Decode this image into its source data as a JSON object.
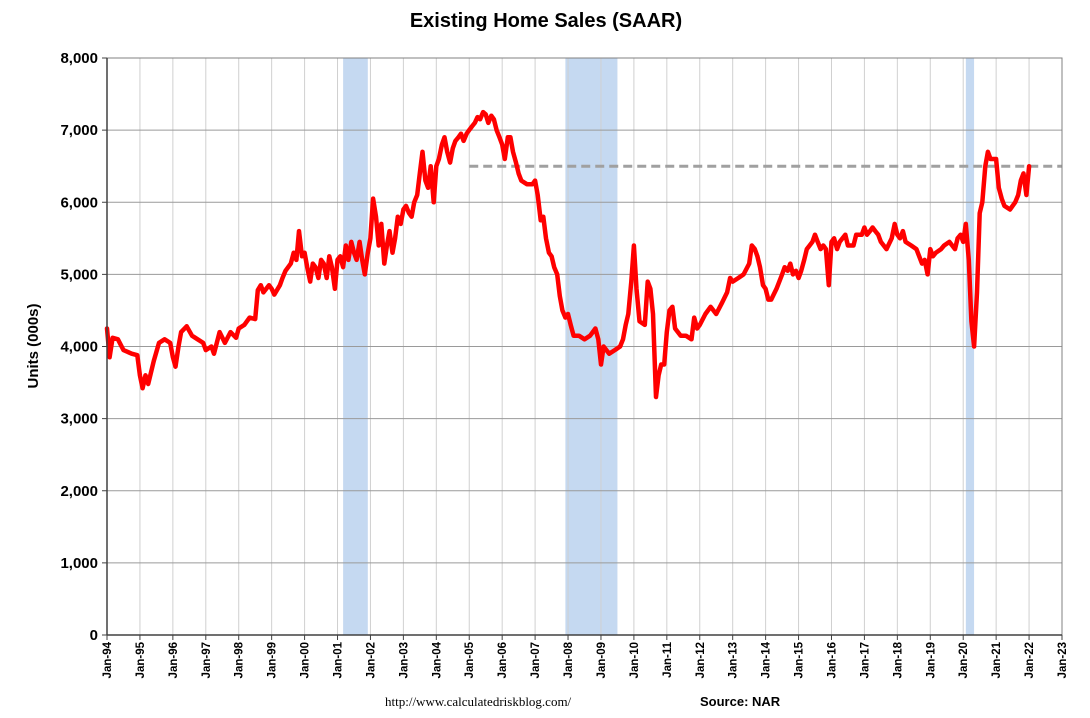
{
  "chart_data": {
    "type": "line",
    "title": "Existing Home Sales (SAAR)",
    "ylabel": "Units (000s)",
    "xlabel": "",
    "ylim": [
      0,
      8000
    ],
    "y_ticks": [
      0,
      1000,
      2000,
      3000,
      4000,
      5000,
      6000,
      7000,
      8000
    ],
    "y_tick_labels": [
      "0",
      "1,000",
      "2,000",
      "3,000",
      "4,000",
      "5,000",
      "6,000",
      "7,000",
      "8,000"
    ],
    "x_range": [
      1994,
      2023
    ],
    "x_ticks": [
      1994,
      1995,
      1996,
      1997,
      1998,
      1999,
      2000,
      2001,
      2002,
      2003,
      2004,
      2005,
      2006,
      2007,
      2008,
      2009,
      2010,
      2011,
      2012,
      2013,
      2014,
      2015,
      2016,
      2017,
      2018,
      2019,
      2020,
      2021,
      2022,
      2023
    ],
    "x_tick_labels": [
      "Jan-94",
      "Jan-95",
      "Jan-96",
      "Jan-97",
      "Jan-98",
      "Jan-99",
      "Jan-00",
      "Jan-01",
      "Jan-02",
      "Jan-03",
      "Jan-04",
      "Jan-05",
      "Jan-06",
      "Jan-07",
      "Jan-08",
      "Jan-09",
      "Jan-10",
      "Jan-11",
      "Jan-12",
      "Jan-13",
      "Jan-14",
      "Jan-15",
      "Jan-16",
      "Jan-17",
      "Jan-18",
      "Jan-19",
      "Jan-20",
      "Jan-21",
      "Jan-22",
      "Jan-23"
    ],
    "grid": true,
    "recessions": [
      [
        2001.17,
        2001.92
      ],
      [
        2007.92,
        2009.5
      ],
      [
        2020.08,
        2020.33
      ]
    ],
    "reference_line": {
      "y": 6500,
      "x_start": 2005.0,
      "x_end": 2023.0,
      "style": "dashed",
      "color": "#a0a0a0"
    },
    "series": [
      {
        "color": "#ff0000",
        "points": [
          [
            1994.0,
            4250
          ],
          [
            1994.08,
            3850
          ],
          [
            1994.17,
            4120
          ],
          [
            1994.33,
            4100
          ],
          [
            1994.5,
            3950
          ],
          [
            1994.75,
            3900
          ],
          [
            1994.92,
            3880
          ],
          [
            1995.0,
            3600
          ],
          [
            1995.08,
            3420
          ],
          [
            1995.17,
            3600
          ],
          [
            1995.25,
            3480
          ],
          [
            1995.42,
            3800
          ],
          [
            1995.58,
            4050
          ],
          [
            1995.75,
            4100
          ],
          [
            1995.92,
            4050
          ],
          [
            1996.0,
            3850
          ],
          [
            1996.08,
            3720
          ],
          [
            1996.17,
            4000
          ],
          [
            1996.25,
            4200
          ],
          [
            1996.42,
            4280
          ],
          [
            1996.58,
            4150
          ],
          [
            1996.75,
            4100
          ],
          [
            1996.92,
            4050
          ],
          [
            1997.0,
            3950
          ],
          [
            1997.17,
            4000
          ],
          [
            1997.25,
            3900
          ],
          [
            1997.42,
            4200
          ],
          [
            1997.58,
            4050
          ],
          [
            1997.75,
            4200
          ],
          [
            1997.92,
            4120
          ],
          [
            1998.0,
            4250
          ],
          [
            1998.17,
            4300
          ],
          [
            1998.33,
            4400
          ],
          [
            1998.5,
            4380
          ],
          [
            1998.58,
            4780
          ],
          [
            1998.67,
            4850
          ],
          [
            1998.75,
            4750
          ],
          [
            1998.92,
            4850
          ],
          [
            1999.0,
            4800
          ],
          [
            1999.08,
            4720
          ],
          [
            1999.25,
            4850
          ],
          [
            1999.33,
            4950
          ],
          [
            1999.42,
            5050
          ],
          [
            1999.58,
            5150
          ],
          [
            1999.67,
            5300
          ],
          [
            1999.75,
            5200
          ],
          [
            1999.83,
            5600
          ],
          [
            1999.92,
            5250
          ],
          [
            2000.0,
            5300
          ],
          [
            2000.08,
            5100
          ],
          [
            2000.17,
            4900
          ],
          [
            2000.25,
            5150
          ],
          [
            2000.33,
            5100
          ],
          [
            2000.42,
            4950
          ],
          [
            2000.5,
            5200
          ],
          [
            2000.58,
            5150
          ],
          [
            2000.67,
            4950
          ],
          [
            2000.75,
            5250
          ],
          [
            2000.83,
            5100
          ],
          [
            2000.92,
            4800
          ],
          [
            2001.0,
            5200
          ],
          [
            2001.08,
            5250
          ],
          [
            2001.17,
            5100
          ],
          [
            2001.25,
            5400
          ],
          [
            2001.33,
            5200
          ],
          [
            2001.42,
            5450
          ],
          [
            2001.5,
            5300
          ],
          [
            2001.58,
            5200
          ],
          [
            2001.67,
            5450
          ],
          [
            2001.75,
            5200
          ],
          [
            2001.83,
            5000
          ],
          [
            2001.92,
            5300
          ],
          [
            2002.0,
            5500
          ],
          [
            2002.08,
            6050
          ],
          [
            2002.17,
            5800
          ],
          [
            2002.25,
            5400
          ],
          [
            2002.33,
            5700
          ],
          [
            2002.42,
            5150
          ],
          [
            2002.5,
            5400
          ],
          [
            2002.58,
            5600
          ],
          [
            2002.67,
            5300
          ],
          [
            2002.75,
            5500
          ],
          [
            2002.83,
            5800
          ],
          [
            2002.92,
            5700
          ],
          [
            2003.0,
            5900
          ],
          [
            2003.08,
            5950
          ],
          [
            2003.17,
            5850
          ],
          [
            2003.25,
            5800
          ],
          [
            2003.33,
            6000
          ],
          [
            2003.42,
            6100
          ],
          [
            2003.5,
            6400
          ],
          [
            2003.58,
            6700
          ],
          [
            2003.67,
            6300
          ],
          [
            2003.75,
            6200
          ],
          [
            2003.83,
            6500
          ],
          [
            2003.92,
            6000
          ],
          [
            2004.0,
            6500
          ],
          [
            2004.08,
            6600
          ],
          [
            2004.17,
            6800
          ],
          [
            2004.25,
            6900
          ],
          [
            2004.33,
            6700
          ],
          [
            2004.42,
            6550
          ],
          [
            2004.5,
            6750
          ],
          [
            2004.58,
            6850
          ],
          [
            2004.67,
            6900
          ],
          [
            2004.75,
            6950
          ],
          [
            2004.83,
            6850
          ],
          [
            2004.92,
            6950
          ],
          [
            2005.0,
            7000
          ],
          [
            2005.08,
            7050
          ],
          [
            2005.17,
            7100
          ],
          [
            2005.25,
            7180
          ],
          [
            2005.33,
            7150
          ],
          [
            2005.42,
            7250
          ],
          [
            2005.5,
            7220
          ],
          [
            2005.58,
            7100
          ],
          [
            2005.67,
            7200
          ],
          [
            2005.75,
            7150
          ],
          [
            2005.83,
            7000
          ],
          [
            2005.92,
            6900
          ],
          [
            2006.0,
            6800
          ],
          [
            2006.08,
            6600
          ],
          [
            2006.17,
            6900
          ],
          [
            2006.25,
            6900
          ],
          [
            2006.33,
            6700
          ],
          [
            2006.42,
            6550
          ],
          [
            2006.5,
            6400
          ],
          [
            2006.58,
            6300
          ],
          [
            2006.75,
            6250
          ],
          [
            2006.92,
            6250
          ],
          [
            2007.0,
            6300
          ],
          [
            2007.08,
            6100
          ],
          [
            2007.17,
            5750
          ],
          [
            2007.25,
            5800
          ],
          [
            2007.33,
            5500
          ],
          [
            2007.42,
            5300
          ],
          [
            2007.5,
            5250
          ],
          [
            2007.58,
            5100
          ],
          [
            2007.67,
            5000
          ],
          [
            2007.75,
            4700
          ],
          [
            2007.83,
            4500
          ],
          [
            2007.92,
            4400
          ],
          [
            2008.0,
            4450
          ],
          [
            2008.08,
            4300
          ],
          [
            2008.17,
            4150
          ],
          [
            2008.33,
            4150
          ],
          [
            2008.5,
            4100
          ],
          [
            2008.67,
            4150
          ],
          [
            2008.83,
            4250
          ],
          [
            2008.92,
            4100
          ],
          [
            2009.0,
            3750
          ],
          [
            2009.08,
            4000
          ],
          [
            2009.25,
            3900
          ],
          [
            2009.42,
            3950
          ],
          [
            2009.58,
            4000
          ],
          [
            2009.67,
            4100
          ],
          [
            2009.75,
            4300
          ],
          [
            2009.83,
            4450
          ],
          [
            2009.92,
            4900
          ],
          [
            2010.0,
            5400
          ],
          [
            2010.08,
            4800
          ],
          [
            2010.17,
            4350
          ],
          [
            2010.33,
            4300
          ],
          [
            2010.42,
            4900
          ],
          [
            2010.5,
            4800
          ],
          [
            2010.58,
            4450
          ],
          [
            2010.67,
            3300
          ],
          [
            2010.75,
            3600
          ],
          [
            2010.83,
            3750
          ],
          [
            2010.92,
            3750
          ],
          [
            2011.0,
            4200
          ],
          [
            2011.08,
            4500
          ],
          [
            2011.17,
            4550
          ],
          [
            2011.25,
            4250
          ],
          [
            2011.42,
            4150
          ],
          [
            2011.58,
            4150
          ],
          [
            2011.75,
            4100
          ],
          [
            2011.83,
            4400
          ],
          [
            2011.92,
            4250
          ],
          [
            2012.0,
            4300
          ],
          [
            2012.17,
            4450
          ],
          [
            2012.33,
            4550
          ],
          [
            2012.5,
            4450
          ],
          [
            2012.67,
            4600
          ],
          [
            2012.83,
            4750
          ],
          [
            2012.92,
            4950
          ],
          [
            2013.0,
            4900
          ],
          [
            2013.17,
            4950
          ],
          [
            2013.33,
            5000
          ],
          [
            2013.5,
            5150
          ],
          [
            2013.58,
            5400
          ],
          [
            2013.67,
            5350
          ],
          [
            2013.75,
            5250
          ],
          [
            2013.83,
            5100
          ],
          [
            2013.92,
            4850
          ],
          [
            2014.0,
            4800
          ],
          [
            2014.08,
            4650
          ],
          [
            2014.17,
            4650
          ],
          [
            2014.33,
            4800
          ],
          [
            2014.5,
            5000
          ],
          [
            2014.58,
            5100
          ],
          [
            2014.67,
            5050
          ],
          [
            2014.75,
            5150
          ],
          [
            2014.83,
            5000
          ],
          [
            2014.92,
            5050
          ],
          [
            2015.0,
            4950
          ],
          [
            2015.08,
            5050
          ],
          [
            2015.17,
            5200
          ],
          [
            2015.25,
            5350
          ],
          [
            2015.42,
            5450
          ],
          [
            2015.5,
            5550
          ],
          [
            2015.58,
            5450
          ],
          [
            2015.67,
            5350
          ],
          [
            2015.75,
            5400
          ],
          [
            2015.83,
            5350
          ],
          [
            2015.92,
            4850
          ],
          [
            2016.0,
            5450
          ],
          [
            2016.08,
            5500
          ],
          [
            2016.17,
            5350
          ],
          [
            2016.25,
            5450
          ],
          [
            2016.42,
            5550
          ],
          [
            2016.5,
            5400
          ],
          [
            2016.67,
            5400
          ],
          [
            2016.75,
            5550
          ],
          [
            2016.92,
            5550
          ],
          [
            2017.0,
            5650
          ],
          [
            2017.08,
            5550
          ],
          [
            2017.17,
            5600
          ],
          [
            2017.25,
            5650
          ],
          [
            2017.33,
            5600
          ],
          [
            2017.42,
            5550
          ],
          [
            2017.5,
            5450
          ],
          [
            2017.67,
            5350
          ],
          [
            2017.83,
            5500
          ],
          [
            2017.92,
            5700
          ],
          [
            2018.0,
            5550
          ],
          [
            2018.08,
            5500
          ],
          [
            2018.17,
            5600
          ],
          [
            2018.25,
            5450
          ],
          [
            2018.42,
            5400
          ],
          [
            2018.58,
            5350
          ],
          [
            2018.75,
            5150
          ],
          [
            2018.83,
            5200
          ],
          [
            2018.92,
            5000
          ],
          [
            2019.0,
            5350
          ],
          [
            2019.08,
            5250
          ],
          [
            2019.17,
            5300
          ],
          [
            2019.33,
            5350
          ],
          [
            2019.42,
            5400
          ],
          [
            2019.58,
            5450
          ],
          [
            2019.75,
            5350
          ],
          [
            2019.83,
            5500
          ],
          [
            2019.92,
            5550
          ],
          [
            2020.0,
            5450
          ],
          [
            2020.08,
            5700
          ],
          [
            2020.17,
            5200
          ],
          [
            2020.25,
            4350
          ],
          [
            2020.33,
            4000
          ],
          [
            2020.42,
            4750
          ],
          [
            2020.5,
            5850
          ],
          [
            2020.58,
            6000
          ],
          [
            2020.67,
            6500
          ],
          [
            2020.75,
            6700
          ],
          [
            2020.83,
            6600
          ],
          [
            2020.92,
            6600
          ],
          [
            2021.0,
            6600
          ],
          [
            2021.08,
            6200
          ],
          [
            2021.17,
            6050
          ],
          [
            2021.25,
            5950
          ],
          [
            2021.42,
            5900
          ],
          [
            2021.58,
            6000
          ],
          [
            2021.67,
            6100
          ],
          [
            2021.75,
            6300
          ],
          [
            2021.83,
            6400
          ],
          [
            2021.92,
            6100
          ],
          [
            2022.0,
            6500
          ]
        ]
      }
    ]
  },
  "footer": {
    "url": "http://www.calculatedriskblog.com/",
    "source": "Source: NAR"
  },
  "colors": {
    "line": "#ff0000",
    "recession": "#c5d9f1",
    "reference": "#a0a0a0",
    "grid": "#b8b8b8"
  }
}
